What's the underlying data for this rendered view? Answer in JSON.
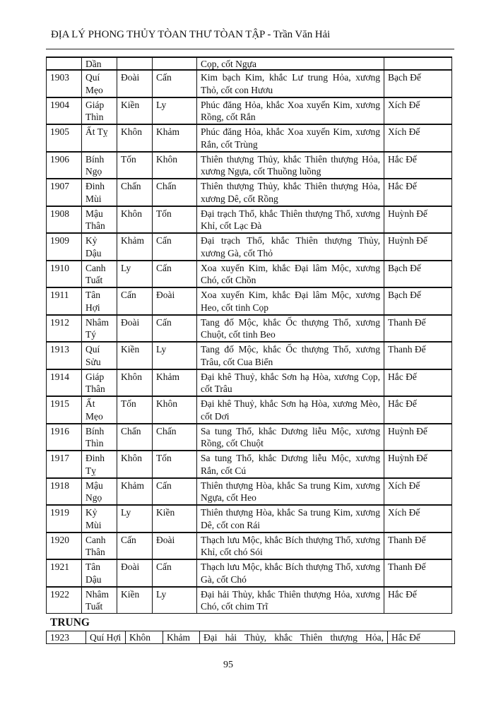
{
  "header": {
    "title": "ĐỊA LÝ PHONG THỦY TÒAN THƯ  TÒAN TẬP -  Trần Văn Hải"
  },
  "table": {
    "continued_row": [
      "",
      "Dần",
      "",
      "",
      "Cọp, cốt Ngựa",
      ""
    ],
    "rows": [
      [
        "1903",
        "Quí Mẹo",
        "Đoài",
        "Cấn",
        "Kim bạch Kim, khắc Lư trung Hỏa, xương Thỏ, cốt con Hươu",
        "Bạch Đế"
      ],
      [
        "1904",
        "Giáp Thìn",
        "Kiền",
        "Ly",
        "Phúc đăng Hỏa, khắc Xoa xuyến Kim, xương Rồng, cốt Rắn",
        "Xích Đế"
      ],
      [
        "1905",
        "Ất Tỵ",
        "Khôn",
        "Khảm",
        "Phúc đăng Hỏa, khắc Xoa xuyến Kim, xương Rắn, cốt Trùng",
        "Xích Đế"
      ],
      [
        "1906",
        "Bính Ngọ",
        "Tốn",
        "Khôn",
        "Thiên thượng Thủy, khắc Thiên thượng Hỏa, xương Ngựa, cốt Thuồng luồng",
        "Hắc Đế"
      ],
      [
        "1907",
        "Đinh Mùi",
        "Chấn",
        "Chấn",
        "Thiên thượng Thủy, khắc Thiên thượng Hỏa, xương Dê, cốt Rồng",
        "Hắc Đế"
      ],
      [
        "1908",
        "Mậu Thân",
        "Khôn",
        "Tốn",
        "Đại trạch Thổ, khắc Thiên thượng Thổ, xương Khỉ, cốt Lạc Đà",
        "Huỳnh Đế"
      ],
      [
        "1909",
        "Kỷ Dậu",
        "Khảm",
        "Cấn",
        "Đại trạch Thổ, khắc Thiên thượng Thủy, xương Gà, cốt Thỏ",
        "Huỳnh Đế"
      ],
      [
        "1910",
        "Canh Tuất",
        "Ly",
        "Cấn",
        "Xoa xuyến Kim, khắc Đại lâm Mộc, xương Chó, cốt Chồn",
        "Bạch Đế"
      ],
      [
        "1911",
        "Tân Hợi",
        "Cấn",
        "Đoài",
        "Xoa xuyến Kim, khắc Đại lâm Mộc, xương Heo, cốt tinh Cọp",
        "Bạch Đế"
      ],
      [
        "1912",
        "Nhâm Tý",
        "Đoài",
        "Cấn",
        "Tang đố Mộc, khắc Ốc thượng Thổ, xương Chuột, cốt tinh Beo",
        "Thanh Đế"
      ],
      [
        "1913",
        "Quí Sửu",
        "Kiền",
        "Ly",
        "Tang đố Mộc, khắc Ốc thượng Thổ, xương Trâu, cốt Cua Biển",
        "Thanh Đế"
      ],
      [
        "1914",
        "Giáp Thân",
        "Khôn",
        "Khảm",
        "Đại khê Thuỷ, khắc Sơn hạ Hòa, xương Cọp, cốt Trâu",
        "Hắc Đế"
      ],
      [
        "1915",
        "Ất Mẹo",
        "Tốn",
        "Khôn",
        "Đại khê Thuỷ, khắc Sơn hạ Hòa, xương Mèo, cốt Dơi",
        "Hắc Đế"
      ],
      [
        "1916",
        "Bính Thìn",
        "Chấn",
        "Chấn",
        "Sa tung Thổ, khắc Dương liễu Mộc, xương Rồng, cốt Chuột",
        "Huỳnh Đế"
      ],
      [
        "1917",
        "Đinh Tỵ",
        "Khôn",
        "Tốn",
        "Sa tung Thổ, khắc Dương liễu Mộc, xương Rắn, cốt Cú",
        "Huỳnh Đế"
      ],
      [
        "1918",
        "Mậu Ngọ",
        "Khảm",
        "Cấn",
        "Thiên thượng Hòa, khắc Sa trung Kim, xương Ngựa, cốt Heo",
        "Xích Đế"
      ],
      [
        "1919",
        "Kỷ Mùi",
        "Ly",
        "Kiền",
        "Thiên thượng Hòa, khắc Sa trung Kim, xương Dê, cốt con Rái",
        "Xích Đế"
      ],
      [
        "1920",
        "Canh Thân",
        "Cấn",
        "Đoài",
        "Thạch lưu Mộc, khắc Bích thượng Thổ, xương Khỉ, cốt chó Sói",
        "Thanh Đế"
      ],
      [
        "1921",
        "Tân Dậu",
        "Đoài",
        "Cấn",
        "Thạch lưu Mộc, khắc Bích thượng Thổ, xương Gà, cốt Chó",
        "Thanh Đế"
      ],
      [
        "1922",
        "Nhâm Tuất",
        "Kiền",
        "Ly",
        "Đại hải Thủy, khắc Thiên thượng Hỏa, xương Chó, cốt chim Trĩ",
        "Hắc Đế"
      ]
    ]
  },
  "section": {
    "title": "TRUNG"
  },
  "next_table": {
    "row": [
      "1923",
      "Quí Hợi",
      "Khôn",
      "Khảm",
      "Đại hải Thủy, khắc Thiên thượng Hỏa,",
      "Hắc Đế"
    ]
  },
  "footer": {
    "page_number": "95"
  }
}
